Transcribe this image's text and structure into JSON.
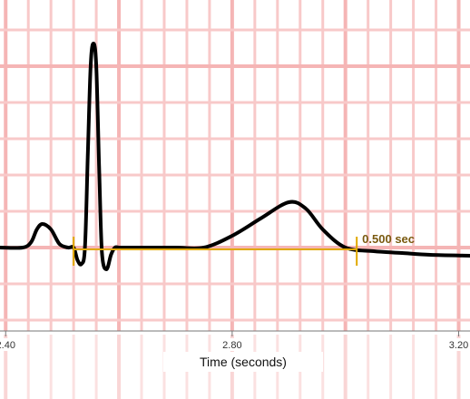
{
  "chart_data": {
    "type": "line",
    "xlabel": "Time (seconds)",
    "xlim": [
      2.39,
      3.22
    ],
    "ylim": [
      -0.5,
      2.5
    ],
    "ticks": [
      {
        "value": 2.4,
        "label": "2.40"
      },
      {
        "value": 2.8,
        "label": "2.80"
      },
      {
        "value": 3.2,
        "label": "3.20"
      }
    ],
    "grid": {
      "minor_step": 0.04,
      "major_step": 0.2,
      "minor_color": "#f8c9c9",
      "major_color": "#f5b5b5",
      "visible": true
    },
    "series": [
      {
        "color": "#000000",
        "x": [
          2.39,
          2.43,
          2.445,
          2.455,
          2.465,
          2.48,
          2.495,
          2.51,
          2.52,
          2.527,
          2.534,
          2.54,
          2.545,
          2.55,
          2.555,
          2.56,
          2.565,
          2.57,
          2.578,
          2.586,
          2.593,
          2.6,
          2.61,
          2.63,
          2.7,
          2.75,
          2.8,
          2.85,
          2.9,
          2.93,
          2.96,
          3.0,
          3.05,
          3.1,
          3.15,
          3.22
        ],
        "y": [
          0,
          0,
          0.06,
          0.2,
          0.26,
          0.2,
          0.04,
          0,
          0,
          -0.14,
          -0.18,
          0,
          1.0,
          2.0,
          2.25,
          2.0,
          0.9,
          -0.05,
          -0.24,
          -0.08,
          0,
          0,
          0,
          0,
          0,
          0,
          0.13,
          0.32,
          0.5,
          0.43,
          0.2,
          0,
          -0.04,
          -0.06,
          -0.08,
          -0.09
        ]
      }
    ],
    "annotations": [
      {
        "type": "interval",
        "x_start": 2.52,
        "x_end": 3.02,
        "y": 0,
        "label": "0.500 sec",
        "color": "#e0a800",
        "label_color": "#7a5a10"
      }
    ]
  }
}
